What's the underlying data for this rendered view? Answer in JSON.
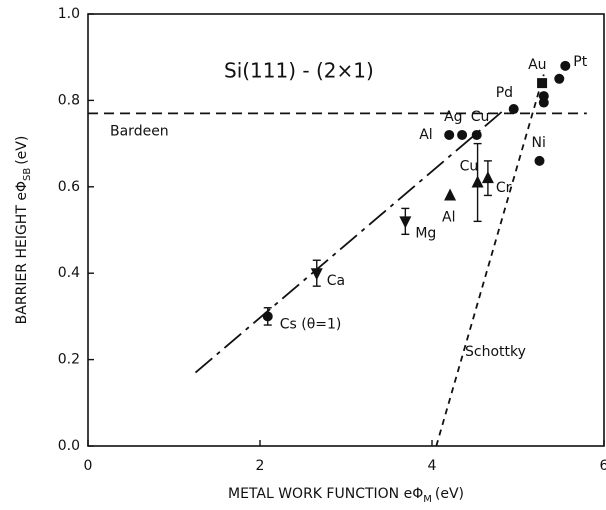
{
  "chart_data": {
    "type": "scatter",
    "xlabel": [
      "METAL WORK FUNCTION eΦ",
      "M",
      "(eV)"
    ],
    "ylabel": [
      "BARRIER HEIGHT eΦ",
      "SB",
      "(eV)"
    ],
    "annotation": "Si(111) - (2×1)",
    "xlim": [
      0,
      6
    ],
    "xticks": [
      0,
      2,
      4,
      6
    ],
    "ylim": [
      0,
      1
    ],
    "yticks": [
      {
        "value": 0,
        "label": "0.0"
      },
      0.2,
      0.4,
      0.6,
      0.8,
      {
        "value": 1,
        "label": "1.0"
      }
    ],
    "color": "#111111",
    "points": [
      {
        "label": "Cs (θ=1)",
        "x": 2.09,
        "y": 0.3,
        "error": 0.02,
        "marker": "circle"
      },
      {
        "label": "Ca",
        "x": 2.66,
        "y": 0.4,
        "error": 0.03,
        "marker": "triangle-down"
      },
      {
        "label": "Mg",
        "x": 3.69,
        "y": 0.52,
        "error": 0.03,
        "marker": "triangle-down"
      },
      {
        "label": "Al",
        "x": 4.21,
        "y": 0.58,
        "marker": "triangle-up"
      },
      {
        "label": "Cu",
        "x": 4.53,
        "y": 0.61,
        "error": 0.09,
        "marker": "triangle-up"
      },
      {
        "label": "Cr",
        "x": 4.65,
        "y": 0.62,
        "error": 0.04,
        "marker": "triangle-up"
      },
      {
        "label": "Al",
        "x": 4.2,
        "y": 0.72,
        "marker": "circle"
      },
      {
        "label": "Ag",
        "x": 4.35,
        "y": 0.72,
        "marker": "circle"
      },
      {
        "label": "Cu",
        "x": 4.52,
        "y": 0.72,
        "marker": "circle"
      },
      {
        "label": "Pd",
        "x": 4.95,
        "y": 0.78,
        "marker": "circle"
      },
      {
        "label": "Au",
        "x": 5.28,
        "y": 0.84,
        "marker": "square"
      },
      {
        "x": 5.3,
        "y": 0.81,
        "marker": "circle"
      },
      {
        "x": 5.3,
        "y": 0.795,
        "marker": "circle"
      },
      {
        "x": 5.48,
        "y": 0.85,
        "marker": "circle"
      },
      {
        "label": "Pt",
        "x": 5.55,
        "y": 0.88,
        "marker": "circle"
      },
      {
        "label": "Ni",
        "x": 5.25,
        "y": 0.66,
        "marker": "circle"
      }
    ],
    "lines": [
      {
        "name": "Bardeen",
        "x": [
          0,
          5.8
        ],
        "y": [
          0.77,
          0.77
        ]
      },
      {
        "name": "Schottky",
        "x": [
          4.05,
          5.3
        ],
        "y": [
          0,
          0.86
        ]
      },
      {
        "x": [
          1.25,
          4.85
        ],
        "y": [
          0.17,
          0.78
        ]
      }
    ]
  }
}
